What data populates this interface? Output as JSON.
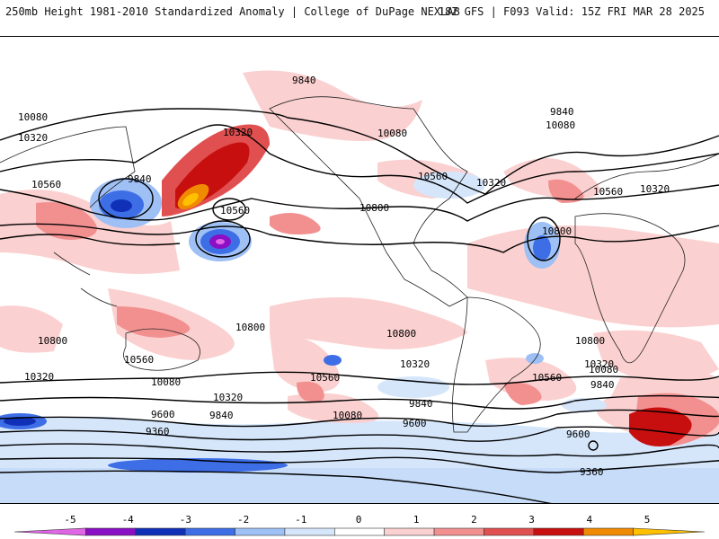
{
  "header": {
    "title": "250mb Height 1981-2010 Standardized Anomaly | College of DuPage NEXLAB",
    "run_info": "18Z GFS | F093 Valid: 15Z FRI MAR 28 2025"
  },
  "map": {
    "projection": "cylindrical global",
    "contour_labels": [
      {
        "text": "9840",
        "name": "contour-label-9840-north-pacific"
      },
      {
        "text": "10080",
        "name": "contour-label-10080-west"
      },
      {
        "text": "10320",
        "name": "contour-label-10320-west"
      },
      {
        "text": "10560",
        "name": "contour-label-10560-west"
      },
      {
        "text": "9840",
        "name": "contour-label-9840-kamchatka-low"
      },
      {
        "text": "10320",
        "name": "contour-label-10320-alaska-high"
      },
      {
        "text": "10560",
        "name": "contour-label-10560-pacific-low"
      },
      {
        "text": "10800",
        "name": "contour-label-10800-central-pacific"
      },
      {
        "text": "10080",
        "name": "contour-label-10080-north-america"
      },
      {
        "text": "10560",
        "name": "contour-label-10560-north-america"
      },
      {
        "text": "10320",
        "name": "contour-label-10320-atlantic"
      },
      {
        "text": "9840",
        "name": "contour-label-9840-europe"
      },
      {
        "text": "10080",
        "name": "contour-label-10080-europe"
      },
      {
        "text": "10560",
        "name": "contour-label-10560-africa-north"
      },
      {
        "text": "10320",
        "name": "contour-label-10320-east"
      },
      {
        "text": "10800",
        "name": "contour-label-10800-atlantic-low"
      },
      {
        "text": "10800",
        "name": "contour-label-10800-south-west"
      },
      {
        "text": "10560",
        "name": "contour-label-10560-south-west"
      },
      {
        "text": "10320",
        "name": "contour-label-10320-south-west"
      },
      {
        "text": "10080",
        "name": "contour-label-10080-south-pacific"
      },
      {
        "text": "10320",
        "name": "contour-label-10320-south-pacific"
      },
      {
        "text": "9600",
        "name": "contour-label-9600-south-pacific"
      },
      {
        "text": "9840",
        "name": "contour-label-9840-south-pacific"
      },
      {
        "text": "9360",
        "name": "contour-label-9360-south-pacific"
      },
      {
        "text": "10800",
        "name": "contour-label-10800-south-pacific-mid"
      },
      {
        "text": "10560",
        "name": "contour-label-10560-south-pacific-mid"
      },
      {
        "text": "10800",
        "name": "contour-label-10800-south-america"
      },
      {
        "text": "10320",
        "name": "contour-label-10320-south-america"
      },
      {
        "text": "10080",
        "name": "contour-label-10080-south-america"
      },
      {
        "text": "9840",
        "name": "contour-label-9840-south-america"
      },
      {
        "text": "9600",
        "name": "contour-label-9600-south-atlantic"
      },
      {
        "text": "10800",
        "name": "contour-label-10800-south-atlantic"
      },
      {
        "text": "10560",
        "name": "contour-label-10560-south-atlantic"
      },
      {
        "text": "10320",
        "name": "contour-label-10320-indian-ocean"
      },
      {
        "text": "10080",
        "name": "contour-label-10080-indian-ocean"
      },
      {
        "text": "9840",
        "name": "contour-label-9840-indian-ocean"
      },
      {
        "text": "9600",
        "name": "contour-label-9600-indian-ocean"
      },
      {
        "text": "9360",
        "name": "contour-label-9360-antarctic"
      }
    ]
  },
  "colorbar": {
    "ticks": [
      "-5",
      "-4",
      "-3",
      "-2",
      "-1",
      "0",
      "1",
      "2",
      "3",
      "4",
      "5"
    ],
    "colors": [
      "#e066e6",
      "#8b0fc4",
      "#1030b8",
      "#3e6ee6",
      "#9ec0f5",
      "#d5e6fb",
      "#ffffff",
      "#fbd0d0",
      "#f29090",
      "#e05050",
      "#c80f0f",
      "#f08a00",
      "#ffc000"
    ]
  }
}
